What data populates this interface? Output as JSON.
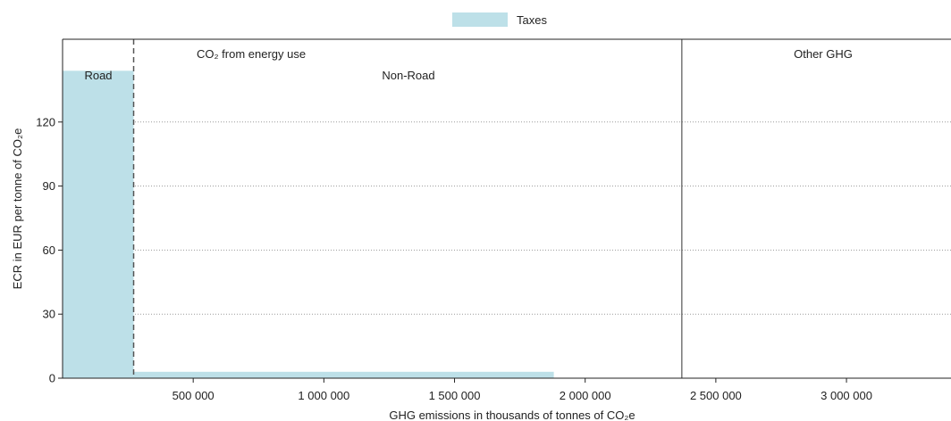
{
  "chart_data": {
    "type": "bar",
    "legend": {
      "label": "Taxes",
      "color": "#bde0e8",
      "position": "top-center"
    },
    "xlabel": "GHG emissions in thousands of tonnes of CO₂e",
    "ylabel": "ECR in EUR per tonne of CO₂e",
    "xlim": [
      0,
      3400000
    ],
    "ylim": [
      0,
      150
    ],
    "x_ticks": [
      500000,
      1000000,
      1500000,
      2000000,
      2500000,
      3000000
    ],
    "x_tick_labels": [
      "500 000",
      "1 000 000",
      "1 500 000",
      "2 000 000",
      "2 500 000",
      "3 000 000"
    ],
    "y_ticks": [
      0,
      30,
      60,
      90,
      120
    ],
    "y_tick_labels": [
      "0",
      "30",
      "60",
      "90",
      "120"
    ],
    "grid": "horizontal dotted",
    "series": [
      {
        "name": "Taxes",
        "color": "#bde0e8",
        "bars": [
          {
            "segment": "Road",
            "x_start": 0,
            "x_end": 272000,
            "value": 144
          },
          {
            "segment": "Non-Road",
            "x_start": 272000,
            "x_end": 1880000,
            "value": 3
          }
        ]
      }
    ],
    "dividers": [
      {
        "x": 272000,
        "style": "dashed"
      },
      {
        "x": 2370000,
        "style": "solid"
      }
    ],
    "annotations": {
      "co2_energy": "CO₂ from energy use",
      "road": "Road",
      "non_road": "Non-Road",
      "other_ghg": "Other GHG"
    }
  }
}
